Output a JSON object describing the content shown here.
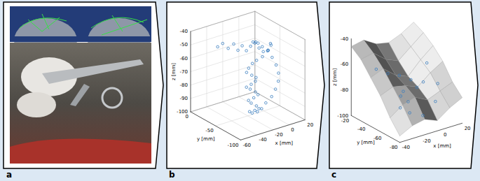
{
  "labels": [
    "a",
    "b",
    "c"
  ],
  "chart_data": [
    {
      "type": "scatter3d",
      "xlabel": "x [mm]",
      "ylabel": "y [mm]",
      "zlabel": "z [mm]",
      "xlim": [
        -60,
        20
      ],
      "ylim": [
        -100,
        0
      ],
      "zlim": [
        -100,
        -40
      ],
      "xticks": [
        -60,
        -40,
        -20,
        0,
        20
      ],
      "yticks": [
        -100,
        -50,
        0
      ],
      "zticks": [
        -100,
        -90,
        -80,
        -70,
        -60,
        -50,
        -40
      ],
      "grid": true,
      "color": "#3a7ebf",
      "marker": "circle",
      "points": {
        "x": [
          -45,
          -40,
          -35,
          -30,
          -26,
          -22,
          -18,
          -14,
          -10,
          -6,
          -2,
          2,
          4,
          2,
          -2,
          -8,
          -14,
          -18,
          -22,
          -24,
          -20,
          -16,
          -18,
          -22,
          -26,
          -22,
          -18,
          -16,
          -20,
          -24,
          -22,
          -18,
          -16,
          -20,
          -24,
          -22,
          -18,
          -14,
          -10,
          -4,
          2,
          8,
          12,
          14,
          14,
          12,
          8,
          4,
          0,
          -6
        ],
        "y": [
          -30,
          -32,
          -35,
          -38,
          -40,
          -42,
          -44,
          -46,
          -48,
          -50,
          -52,
          -55,
          -58,
          -60,
          -62,
          -60,
          -58,
          -56,
          -55,
          -54,
          -58,
          -60,
          -62,
          -60,
          -57,
          -58,
          -62,
          -64,
          -62,
          -58,
          -60,
          -64,
          -66,
          -64,
          -60,
          -62,
          -66,
          -68,
          -70,
          -72,
          -70,
          -66,
          -60,
          -52,
          -44,
          -38,
          -34,
          -32,
          -34,
          -38
        ],
        "z": [
          -48,
          -46,
          -50,
          -47,
          -52,
          -49,
          -53,
          -50,
          -48,
          -52,
          -55,
          -54,
          -50,
          -48,
          -52,
          -56,
          -58,
          -60,
          -63,
          -66,
          -68,
          -70,
          -72,
          -74,
          -76,
          -78,
          -80,
          -82,
          -84,
          -86,
          -88,
          -90,
          -92,
          -93,
          -94,
          -95,
          -94,
          -92,
          -88,
          -84,
          -80,
          -76,
          -72,
          -68,
          -64,
          -60,
          -57,
          -54,
          -52,
          -50
        ]
      }
    },
    {
      "type": "surface",
      "xlabel": "x [mm]",
      "ylabel": "y [mm]",
      "zlabel": "z [mm]",
      "xlim": [
        -40,
        20
      ],
      "ylim": [
        -80,
        -20
      ],
      "zlim": [
        -100,
        -40
      ],
      "xticks": [
        -40,
        -20,
        0,
        20
      ],
      "yticks": [
        -80,
        -60,
        -40,
        -20
      ],
      "zticks": [
        -100,
        -80,
        -60,
        -40
      ],
      "grid": false,
      "color": "#3a7ebf",
      "marker": "circle",
      "surface": {
        "x": [
          -40,
          -28,
          -16,
          -4,
          8,
          20
        ],
        "y": [
          -80,
          -68,
          -56,
          -44,
          -32,
          -20
        ],
        "z": [
          [
            -95,
            -90,
            -88,
            -92,
            -85,
            -80
          ],
          [
            -85,
            -78,
            -75,
            -80,
            -76,
            -72
          ],
          [
            -72,
            -68,
            -70,
            -74,
            -66,
            -60
          ],
          [
            -62,
            -58,
            -66,
            -70,
            -60,
            -52
          ],
          [
            -52,
            -50,
            -58,
            -62,
            -54,
            -46
          ],
          [
            -46,
            -44,
            -50,
            -52,
            -48,
            -42
          ]
        ]
      },
      "points": {
        "x": [
          -30,
          -22,
          -14,
          -6,
          2,
          -8,
          -18,
          -22,
          -18,
          -24,
          -18,
          -10,
          2,
          12,
          14
        ],
        "y": [
          -38,
          -42,
          -46,
          -50,
          -55,
          -60,
          -56,
          -58,
          -62,
          -60,
          -64,
          -70,
          -70,
          -60,
          -44
        ],
        "z": [
          -60,
          -64,
          -66,
          -70,
          -72,
          -72,
          -74,
          -76,
          -80,
          -84,
          -88,
          -90,
          -82,
          -74,
          -64
        ]
      }
    }
  ]
}
